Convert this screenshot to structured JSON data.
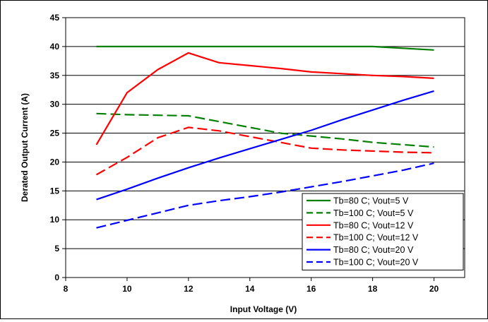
{
  "chart_data": {
    "type": "line",
    "title": "",
    "xlabel": "Input Voltage (V)",
    "ylabel": "Derated Output Current (A)",
    "xlim": [
      8,
      21
    ],
    "ylim": [
      0,
      45
    ],
    "x_ticks": [
      "8",
      "10",
      "12",
      "14",
      "16",
      "18",
      "20"
    ],
    "y_ticks": [
      "0",
      "5",
      "10",
      "15",
      "20",
      "25",
      "30",
      "35",
      "40",
      "45"
    ],
    "grid": "horizontal",
    "legend_position": "bottom-right",
    "series": [
      {
        "name": "Tb=80 C; Vout=5 V",
        "color": "#008000",
        "dash": "solid",
        "x": [
          9,
          10,
          11,
          12,
          13,
          14,
          15,
          16,
          17,
          18,
          20
        ],
        "y": [
          40,
          40,
          40,
          40,
          40,
          40,
          40,
          40,
          40,
          40,
          39.4
        ]
      },
      {
        "name": "Tb=100 C; Vout=5 V",
        "color": "#008000",
        "dash": "dashed",
        "x": [
          9,
          10,
          11,
          12,
          13,
          14,
          15,
          16,
          17,
          18,
          19,
          20
        ],
        "y": [
          28.4,
          28.2,
          28.1,
          28.0,
          27.0,
          26.0,
          25.0,
          24.5,
          24.0,
          23.4,
          23.0,
          22.6
        ]
      },
      {
        "name": "Tb=80 C; Vout=12 V",
        "color": "#ff0000",
        "dash": "solid",
        "x": [
          9,
          10,
          11,
          12,
          13,
          14,
          15,
          16,
          17,
          18,
          19,
          20
        ],
        "y": [
          23.0,
          32.0,
          36.0,
          38.9,
          37.2,
          36.7,
          36.2,
          35.6,
          35.3,
          35.0,
          34.8,
          34.5
        ]
      },
      {
        "name": "Tb=100 C; Vout=12 V",
        "color": "#ff0000",
        "dash": "dashed",
        "x": [
          9,
          10,
          11,
          12,
          13,
          14,
          15,
          16,
          17,
          18,
          19,
          20
        ],
        "y": [
          17.8,
          20.8,
          24.2,
          26.0,
          25.4,
          24.4,
          23.4,
          22.4,
          22.1,
          21.9,
          21.7,
          21.6
        ]
      },
      {
        "name": "Tb=80 C; Vout=20 V",
        "color": "#0000ff",
        "dash": "solid",
        "x": [
          9,
          10,
          11,
          12,
          13,
          14,
          15,
          16,
          17,
          18,
          19,
          20
        ],
        "y": [
          13.5,
          15.3,
          17.2,
          19.0,
          20.7,
          22.3,
          23.9,
          25.5,
          27.3,
          29.0,
          30.7,
          32.3
        ]
      },
      {
        "name": "Tb=100 C; Vout=20 V",
        "color": "#0000ff",
        "dash": "dashed",
        "x": [
          9,
          10,
          11,
          12,
          13,
          14,
          15,
          16,
          17,
          18,
          19,
          20
        ],
        "y": [
          8.6,
          9.9,
          11.2,
          12.5,
          13.3,
          14.0,
          14.8,
          15.7,
          16.6,
          17.6,
          18.6,
          19.8
        ]
      }
    ]
  }
}
